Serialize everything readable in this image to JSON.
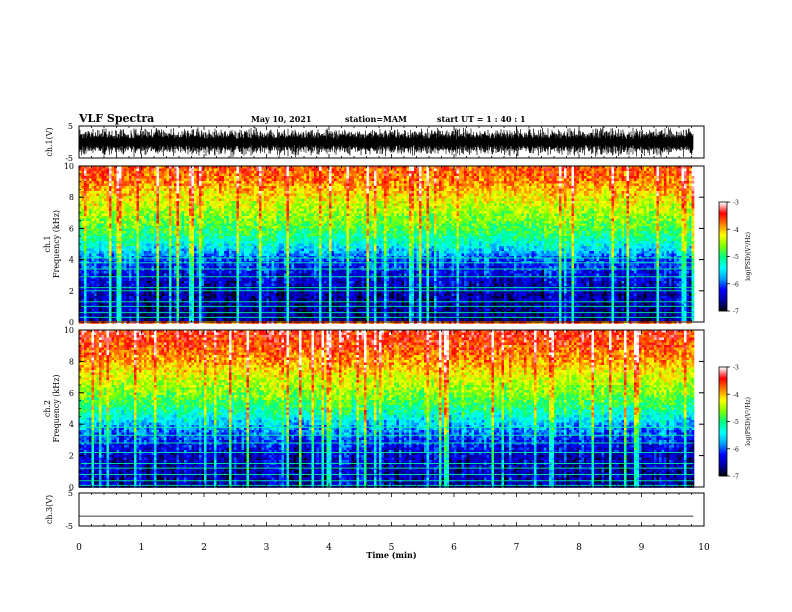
{
  "header": {
    "title": "VLF Spectra",
    "date": "May 10, 2021",
    "station": "station=MAM",
    "start": "start  UT =   1 : 40 : 1"
  },
  "chart_data": [
    {
      "type": "line",
      "panel": "ch1_waveform",
      "ylabel": "ch.1(V)",
      "ylim": [
        -5,
        5
      ],
      "yticks": [
        "5",
        "-5"
      ],
      "xlim": [
        0,
        10
      ],
      "x_extent": [
        0,
        9.83
      ],
      "description_values": {
        "band_low": -4.8,
        "band_high": 4.8,
        "dense_noise": true
      }
    },
    {
      "type": "heatmap",
      "panel": "ch1_spectrogram",
      "ylabel_line1": "ch.1",
      "ylabel_line2": "Frequency  (kHz)",
      "ylim": [
        0,
        10
      ],
      "yticks": [
        "0",
        "2",
        "4",
        "6",
        "8",
        "10"
      ],
      "xlim": [
        0,
        10
      ],
      "x_extent": [
        0,
        9.83
      ],
      "colorbar": {
        "label": "log(PSD)(V²/Hz)",
        "range": [
          -7,
          -3
        ],
        "ticks": [
          "-3",
          "-4",
          "-5",
          "-6",
          "-7"
        ]
      },
      "level_profile_by_frequency_kHz": [
        [
          0,
          -6.6
        ],
        [
          1,
          -6.6
        ],
        [
          2,
          -6.5
        ],
        [
          3,
          -6.3
        ],
        [
          4,
          -6.0
        ],
        [
          5,
          -5.3
        ],
        [
          6,
          -4.8
        ],
        [
          7,
          -4.5
        ],
        [
          8,
          -4.2
        ],
        [
          9,
          -3.8
        ],
        [
          10,
          -3.6
        ]
      ],
      "tonal_lines_kHz": [
        0.3,
        0.6,
        1.0,
        1.3,
        2.0,
        2.2,
        2.9,
        3.4,
        3.8,
        4.1
      ]
    },
    {
      "type": "heatmap",
      "panel": "ch2_spectrogram",
      "ylabel_line1": "ch.2",
      "ylabel_line2": "Frequency  (kHz)",
      "ylim": [
        0,
        10
      ],
      "yticks": [
        "0",
        "2",
        "4",
        "6",
        "8",
        "10"
      ],
      "xlim": [
        0,
        10
      ],
      "x_extent": [
        0,
        9.83
      ],
      "colorbar": {
        "label": "log(PSD)(V²/Hz)",
        "range": [
          -7,
          -3
        ],
        "ticks": [
          "-3",
          "-4",
          "-5",
          "-6",
          "-7"
        ]
      },
      "level_profile_by_frequency_kHz": [
        [
          0,
          -6.5
        ],
        [
          1,
          -6.5
        ],
        [
          2,
          -6.4
        ],
        [
          3,
          -6.1
        ],
        [
          4,
          -5.6
        ],
        [
          5,
          -5.0
        ],
        [
          6,
          -4.6
        ],
        [
          7,
          -4.3
        ],
        [
          8,
          -3.9
        ],
        [
          9,
          -3.6
        ],
        [
          10,
          -3.4
        ]
      ],
      "tonal_lines_kHz": [
        0.1,
        0.4,
        0.8,
        1.2,
        1.5,
        2.2,
        2.8,
        3.3,
        3.8
      ]
    },
    {
      "type": "line",
      "panel": "ch3_waveform",
      "ylabel": "ch.3(V)",
      "ylim": [
        -5,
        5
      ],
      "yticks": [
        "5",
        "-5"
      ],
      "xlim": [
        0,
        10
      ],
      "x_extent": [
        0,
        9.83
      ],
      "constant_value": -2.0
    }
  ],
  "xaxis": {
    "label": "Time  (min)",
    "ticks": [
      "0",
      "1",
      "2",
      "3",
      "4",
      "5",
      "6",
      "7",
      "8",
      "9",
      "10"
    ],
    "range": [
      0,
      10
    ]
  },
  "colors": {
    "colormap": [
      "#000000",
      "#0000a0",
      "#0000ff",
      "#00a0ff",
      "#00ffff",
      "#00ff80",
      "#80ff00",
      "#ffff00",
      "#ff8000",
      "#ff0000",
      "#ffffff"
    ]
  }
}
